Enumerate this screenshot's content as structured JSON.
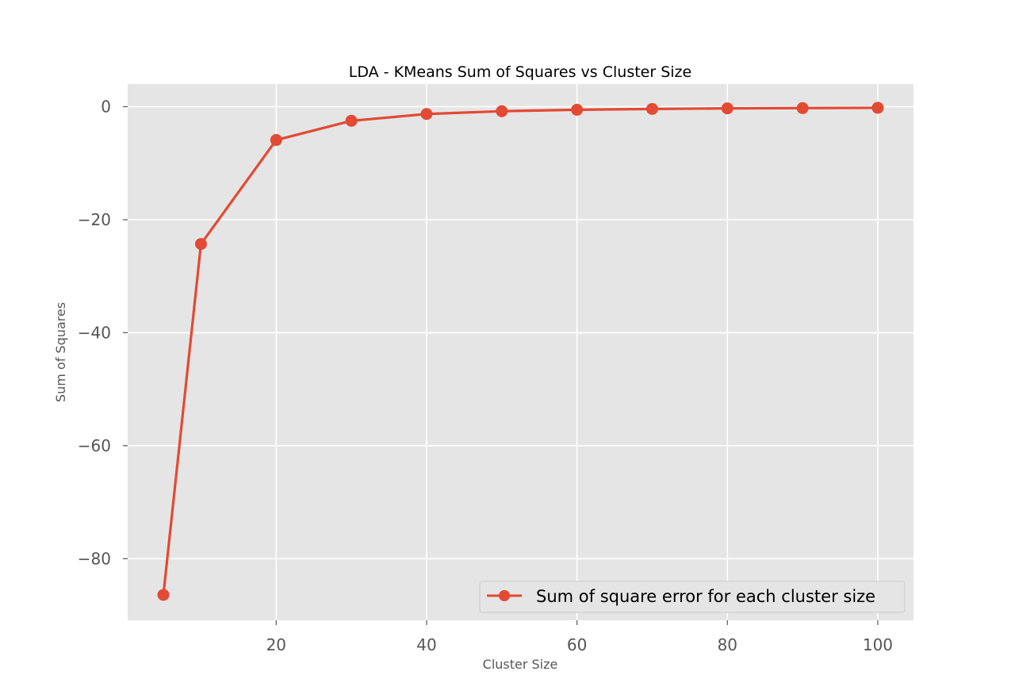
{
  "chart_data": {
    "type": "line",
    "title": "LDA - KMeans Sum of Squares vs Cluster Size",
    "xlabel": "Cluster Size",
    "ylabel": "Sum of Squares",
    "xlim": [
      0.25,
      104.75
    ],
    "ylim": [
      -90.9,
      4.0
    ],
    "xticks": [
      20,
      40,
      60,
      80,
      100
    ],
    "yticks": [
      0,
      -20,
      -40,
      -60,
      -80
    ],
    "xtick_labels": [
      "20",
      "40",
      "60",
      "80",
      "100"
    ],
    "ytick_labels": [
      "0",
      "−20",
      "−40",
      "−60",
      "−80"
    ],
    "grid": true,
    "legend_position": "lower-right",
    "series": [
      {
        "name": "Sum of square error for each cluster size",
        "marker": "circle",
        "x": [
          5,
          10,
          20,
          30,
          40,
          50,
          60,
          70,
          80,
          90,
          100
        ],
        "y": [
          -86.4,
          -24.3,
          -5.9,
          -2.5,
          -1.3,
          -0.8,
          -0.55,
          -0.4,
          -0.3,
          -0.25,
          -0.2
        ]
      }
    ]
  },
  "colors": {
    "plot_background": "#e5e5e5",
    "grid": "#ffffff",
    "series": "#e24a33",
    "legend_background": "#e5e5e5",
    "legend_border": "#cccccc",
    "tick_label": "#555555"
  }
}
